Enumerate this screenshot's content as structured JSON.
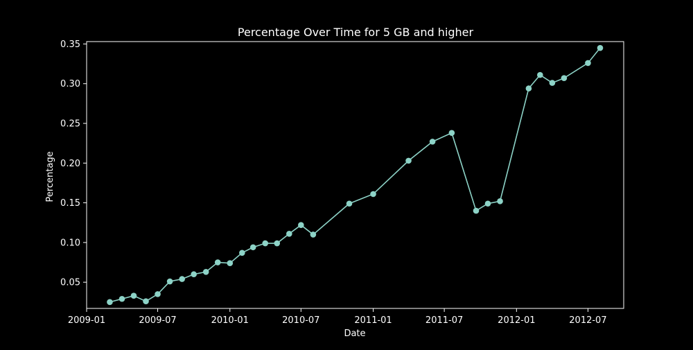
{
  "chart_data": {
    "type": "line",
    "title": "Percentage Over Time for 5 GB and higher",
    "xlabel": "Date",
    "ylabel": "Percentage",
    "x_ticks": [
      "2009-01",
      "2009-07",
      "2010-01",
      "2010-07",
      "2011-01",
      "2011-07",
      "2012-01",
      "2012-07"
    ],
    "y_ticks": [
      "0.05",
      "0.10",
      "0.15",
      "0.20",
      "0.25",
      "0.30",
      "0.35"
    ],
    "xlim": [
      "2009-01-01",
      "2012-09-30"
    ],
    "ylim": [
      0.017,
      0.353
    ],
    "grid": false,
    "legend": "none",
    "series": [
      {
        "color": "#8dd3c7",
        "points": [
          {
            "x": "2009-03-01",
            "y": 0.025
          },
          {
            "x": "2009-04-01",
            "y": 0.029
          },
          {
            "x": "2009-05-01",
            "y": 0.033
          },
          {
            "x": "2009-06-01",
            "y": 0.026
          },
          {
            "x": "2009-07-01",
            "y": 0.035
          },
          {
            "x": "2009-08-01",
            "y": 0.051
          },
          {
            "x": "2009-09-01",
            "y": 0.054
          },
          {
            "x": "2009-10-01",
            "y": 0.06
          },
          {
            "x": "2009-11-01",
            "y": 0.063
          },
          {
            "x": "2009-12-01",
            "y": 0.075
          },
          {
            "x": "2010-01-01",
            "y": 0.074
          },
          {
            "x": "2010-02-01",
            "y": 0.087
          },
          {
            "x": "2010-03-01",
            "y": 0.094
          },
          {
            "x": "2010-04-01",
            "y": 0.099
          },
          {
            "x": "2010-05-01",
            "y": 0.099
          },
          {
            "x": "2010-06-01",
            "y": 0.111
          },
          {
            "x": "2010-07-01",
            "y": 0.122
          },
          {
            "x": "2010-08-01",
            "y": 0.11
          },
          {
            "x": "2010-11-01",
            "y": 0.149
          },
          {
            "x": "2011-01-01",
            "y": 0.161
          },
          {
            "x": "2011-04-01",
            "y": 0.203
          },
          {
            "x": "2011-06-01",
            "y": 0.227
          },
          {
            "x": "2011-07-20",
            "y": 0.238
          },
          {
            "x": "2011-09-20",
            "y": 0.14
          },
          {
            "x": "2011-10-20",
            "y": 0.149
          },
          {
            "x": "2011-11-20",
            "y": 0.152
          },
          {
            "x": "2012-02-01",
            "y": 0.294
          },
          {
            "x": "2012-03-01",
            "y": 0.311
          },
          {
            "x": "2012-04-01",
            "y": 0.301
          },
          {
            "x": "2012-05-01",
            "y": 0.307
          },
          {
            "x": "2012-07-01",
            "y": 0.326
          },
          {
            "x": "2012-08-01",
            "y": 0.345
          }
        ]
      }
    ]
  }
}
